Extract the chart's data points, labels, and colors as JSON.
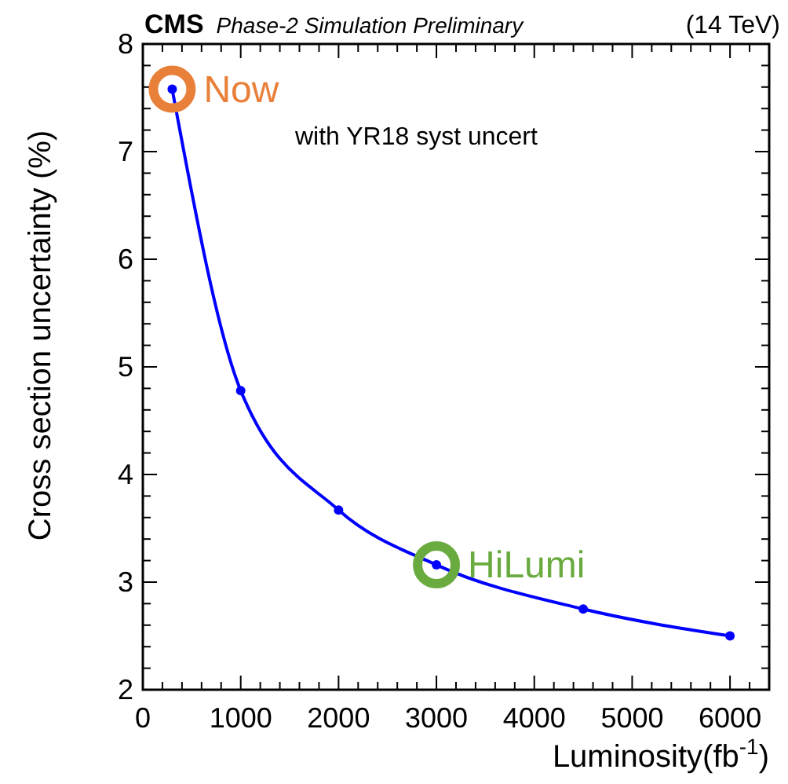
{
  "chart_data": {
    "type": "line",
    "title": "CMS",
    "subtitle": "Phase-2 Simulation Preliminary",
    "xlabel": "Luminosity(fb$^{-1}$)",
    "ylabel": "Cross section uncertainty (%)",
    "x": [
      300,
      1000,
      2000,
      3000,
      4500,
      6000
    ],
    "series": [
      {
        "color": "#0000ff",
        "values": [
          7.58,
          4.78,
          3.67,
          3.16,
          2.75,
          2.5
        ]
      }
    ],
    "marker": "circle",
    "line_style": "solid",
    "xlim": [
      0,
      6400
    ],
    "ylim": [
      2,
      8
    ],
    "xticks": [
      0,
      {
        "value": 200,
        "label": null
      },
      {
        "value": 400,
        "label": null
      },
      {
        "value": 600,
        "label": null
      },
      {
        "value": 800,
        "label": null
      },
      1000,
      {
        "value": 1200,
        "label": null
      },
      {
        "value": 1400,
        "label": null
      },
      {
        "value": 1600,
        "label": null
      },
      {
        "value": 1800,
        "label": null
      },
      2000,
      {
        "value": 2200,
        "label": null
      },
      {
        "value": 2400,
        "label": null
      },
      {
        "value": 2600,
        "label": null
      },
      {
        "value": 2800,
        "label": null
      },
      3000,
      {
        "value": 3200,
        "label": null
      },
      {
        "value": 3400,
        "label": null
      },
      {
        "value": 3600,
        "label": null
      },
      {
        "value": 3800,
        "label": null
      },
      4000,
      {
        "value": 4200,
        "label": null
      },
      {
        "value": 4400,
        "label": null
      },
      {
        "value": 4600,
        "label": null
      },
      {
        "value": 4800,
        "label": null
      },
      5000,
      {
        "value": 5200,
        "label": null
      },
      {
        "value": 5400,
        "label": null
      },
      {
        "value": 5600,
        "label": null
      },
      {
        "value": 5800,
        "label": null
      },
      6000,
      {
        "value": 6200,
        "label": null
      }
    ],
    "yticks": [
      2,
      {
        "value": 2.2,
        "label": null
      },
      {
        "value": 2.4,
        "label": null
      },
      {
        "value": 2.6,
        "label": null
      },
      {
        "value": 2.8,
        "label": null
      },
      3,
      {
        "value": 3.2,
        "label": null
      },
      {
        "value": 3.4,
        "label": null
      },
      {
        "value": 3.6,
        "label": null
      },
      {
        "value": 3.8,
        "label": null
      },
      4,
      {
        "value": 4.2,
        "label": null
      },
      {
        "value": 4.4,
        "label": null
      },
      {
        "value": 4.6,
        "label": null
      },
      {
        "value": 4.8,
        "label": null
      },
      5,
      {
        "value": 5.2,
        "label": null
      },
      {
        "value": 5.4,
        "label": null
      },
      {
        "value": 5.6,
        "label": null
      },
      {
        "value": 5.8,
        "label": null
      },
      6,
      {
        "value": 6.2,
        "label": null
      },
      {
        "value": 6.4,
        "label": null
      },
      {
        "value": 6.6,
        "label": null
      },
      {
        "value": 6.8,
        "label": null
      },
      7,
      {
        "value": 7.2,
        "label": null
      },
      {
        "value": 7.4,
        "label": null
      },
      {
        "value": 7.6,
        "label": null
      },
      {
        "value": 7.8,
        "label": null
      },
      8
    ],
    "annotations": [
      "(14 TeV)",
      "with YR18 syst uncert",
      {
        "text": "Now",
        "x": 300,
        "y": 7.58
      },
      {
        "text": "HiLumi",
        "x": 3000,
        "y": 3.16
      }
    ]
  }
}
